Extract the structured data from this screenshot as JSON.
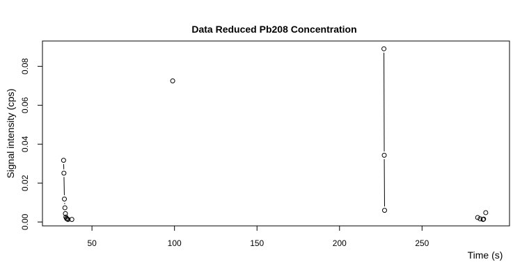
{
  "chart_data": {
    "type": "scatter",
    "title": "Data Reduced Pb208 Concentration",
    "xlabel": "Time (s)",
    "ylabel": "Signal intensity (cps)",
    "xlim": [
      20,
      303
    ],
    "ylim": [
      -0.002,
      0.093
    ],
    "x_ticks": [
      50,
      100,
      150,
      200,
      250
    ],
    "x_tick_labels": [
      "50",
      "100",
      "150",
      "200",
      "250"
    ],
    "y_ticks": [
      0.0,
      0.02,
      0.04,
      0.06,
      0.08
    ],
    "y_tick_labels": [
      "0.00",
      "0.02",
      "0.04",
      "0.06",
      "0.08"
    ],
    "grid": false,
    "legend": "none",
    "point_color": "#000000",
    "points": [
      {
        "x": 32.8,
        "y": 0.0317
      },
      {
        "x": 33.0,
        "y": 0.0251
      },
      {
        "x": 33.3,
        "y": 0.0118
      },
      {
        "x": 33.6,
        "y": 0.0073
      },
      {
        "x": 33.9,
        "y": 0.0043
      },
      {
        "x": 34.2,
        "y": 0.0025
      },
      {
        "x": 34.6,
        "y": 0.0018
      },
      {
        "x": 35.0,
        "y": 0.0015
      },
      {
        "x": 35.5,
        "y": 0.0013
      },
      {
        "x": 37.8,
        "y": 0.0013
      },
      {
        "x": 98.9,
        "y": 0.0725
      },
      {
        "x": 226.9,
        "y": 0.089
      },
      {
        "x": 227.1,
        "y": 0.0343
      },
      {
        "x": 227.3,
        "y": 0.006
      },
      {
        "x": 283.7,
        "y": 0.0023
      },
      {
        "x": 285.2,
        "y": 0.0016
      },
      {
        "x": 287.0,
        "y": 0.0013
      },
      {
        "x": 287.3,
        "y": 0.0015
      },
      {
        "x": 288.6,
        "y": 0.0048
      }
    ],
    "segments": [
      {
        "x1": 32.8,
        "y1": 0.0317,
        "x2": 33.0,
        "y2": 0.0251
      },
      {
        "x1": 33.0,
        "y1": 0.0251,
        "x2": 33.3,
        "y2": 0.0118
      },
      {
        "x1": 33.3,
        "y1": 0.0118,
        "x2": 33.6,
        "y2": 0.0073
      },
      {
        "x1": 33.6,
        "y1": 0.0073,
        "x2": 33.9,
        "y2": 0.0043
      },
      {
        "x1": 226.9,
        "y1": 0.089,
        "x2": 227.1,
        "y2": 0.0343
      },
      {
        "x1": 227.1,
        "y1": 0.0343,
        "x2": 227.3,
        "y2": 0.006
      }
    ]
  }
}
